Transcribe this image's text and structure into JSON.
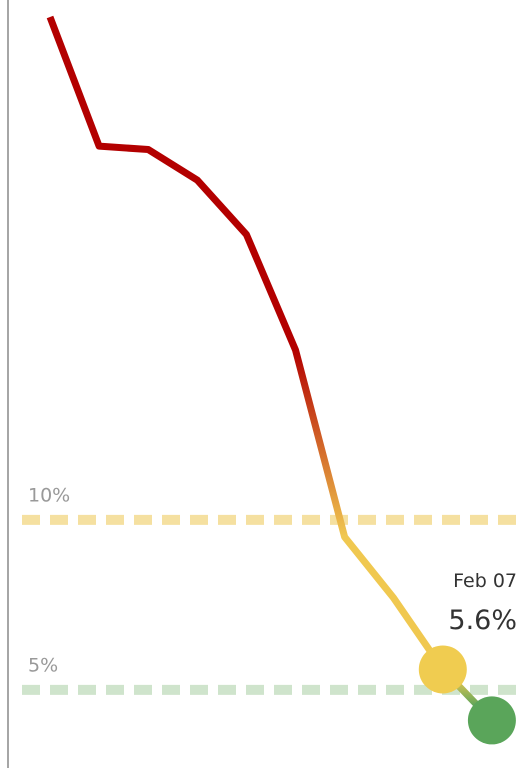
{
  "chart_data": {
    "type": "line",
    "categories": [
      null,
      null,
      null,
      null,
      null,
      null,
      null,
      null,
      null,
      null
    ],
    "series": [
      {
        "values": [
          24.8,
          21.0,
          20.9,
          20.0,
          18.4,
          15.0,
          9.5,
          7.7,
          5.6,
          4.1
        ]
      }
    ],
    "ylim": [
      2.7,
      25.3
    ],
    "color_stops": [
      {
        "value": 15,
        "color": "#b30000"
      },
      {
        "value": 9.5,
        "color": "#f0c850"
      },
      {
        "value": 5.4,
        "color": "#f0c850"
      },
      {
        "value": 4.5,
        "color": "#5aa55a"
      }
    ],
    "reference_lines": [
      {
        "value": 10,
        "label": "10%",
        "color": "#f5e0a0"
      },
      {
        "value": 5,
        "label": "5%",
        "color": "#cfe4cc"
      }
    ],
    "markers": [
      {
        "index": 8,
        "color": "#f0cc50"
      },
      {
        "index": 9,
        "color": "#5aa55a"
      }
    ],
    "annotation": {
      "index": 8,
      "label": "Feb 07",
      "value_label": "5.6%"
    }
  }
}
